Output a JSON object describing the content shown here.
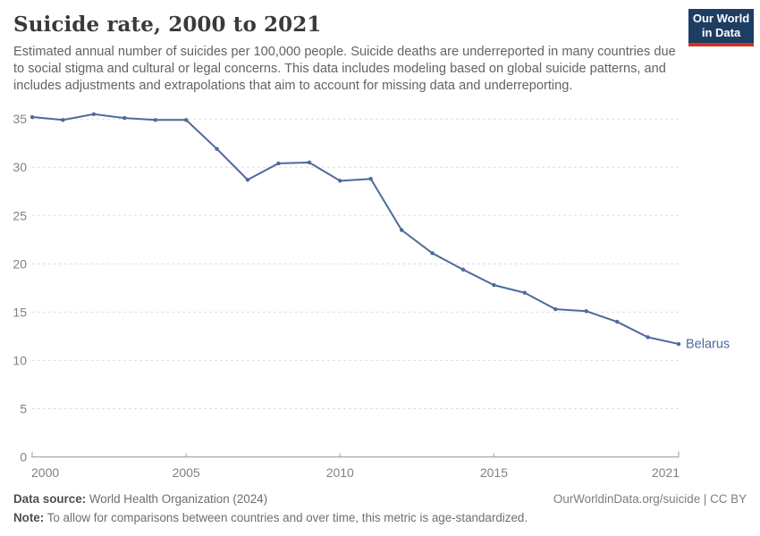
{
  "header": {
    "title": "Suicide rate, 2000 to 2021",
    "subtitle": "Estimated annual number of suicides per 100,000 people. Suicide deaths are underreported in many countries due to social stigma and cultural or legal concerns. This data includes modeling based on global suicide patterns, and includes adjustments and extrapolations that aim to account for missing data and underreporting.",
    "logo": {
      "line1": "Our World",
      "line2": "in Data"
    }
  },
  "chart_data": {
    "type": "line",
    "title": "Suicide rate, 2000 to 2021",
    "x": [
      2000,
      2001,
      2002,
      2003,
      2004,
      2005,
      2006,
      2007,
      2008,
      2009,
      2010,
      2011,
      2012,
      2013,
      2014,
      2015,
      2016,
      2017,
      2018,
      2019,
      2020,
      2021
    ],
    "series": [
      {
        "name": "Belarus",
        "color": "#4c6a9c",
        "values": [
          35.2,
          34.9,
          35.5,
          35.1,
          34.9,
          34.9,
          31.9,
          28.7,
          30.4,
          30.5,
          28.6,
          28.8,
          23.5,
          21.1,
          19.4,
          17.8,
          17.0,
          15.3,
          15.1,
          14.0,
          12.4,
          11.7
        ]
      }
    ],
    "xticks": [
      2000,
      2005,
      2010,
      2015,
      2021
    ],
    "yticks": [
      0,
      5,
      10,
      15,
      20,
      25,
      30,
      35
    ],
    "xlim": [
      2000,
      2021
    ],
    "ylim": [
      0,
      35
    ],
    "grid": true,
    "legend_position": "end-of-line-label",
    "end_label": "Belarus"
  },
  "footer": {
    "data_source_label": "Data source:",
    "data_source_value": " World Health Organization (2024)",
    "note_label": "Note:",
    "note_value": " To allow for comparisons between countries and over time, this metric is age-standardized.",
    "link": "OurWorldinData.org/suicide | CC BY"
  },
  "colors": {
    "line": "#4c6a9c",
    "logo_background": "#1d3d63",
    "logo_stripe": "#cc3425",
    "grid": "#dedede",
    "axis": "#9a9a9a",
    "tick_label": "#818181"
  }
}
